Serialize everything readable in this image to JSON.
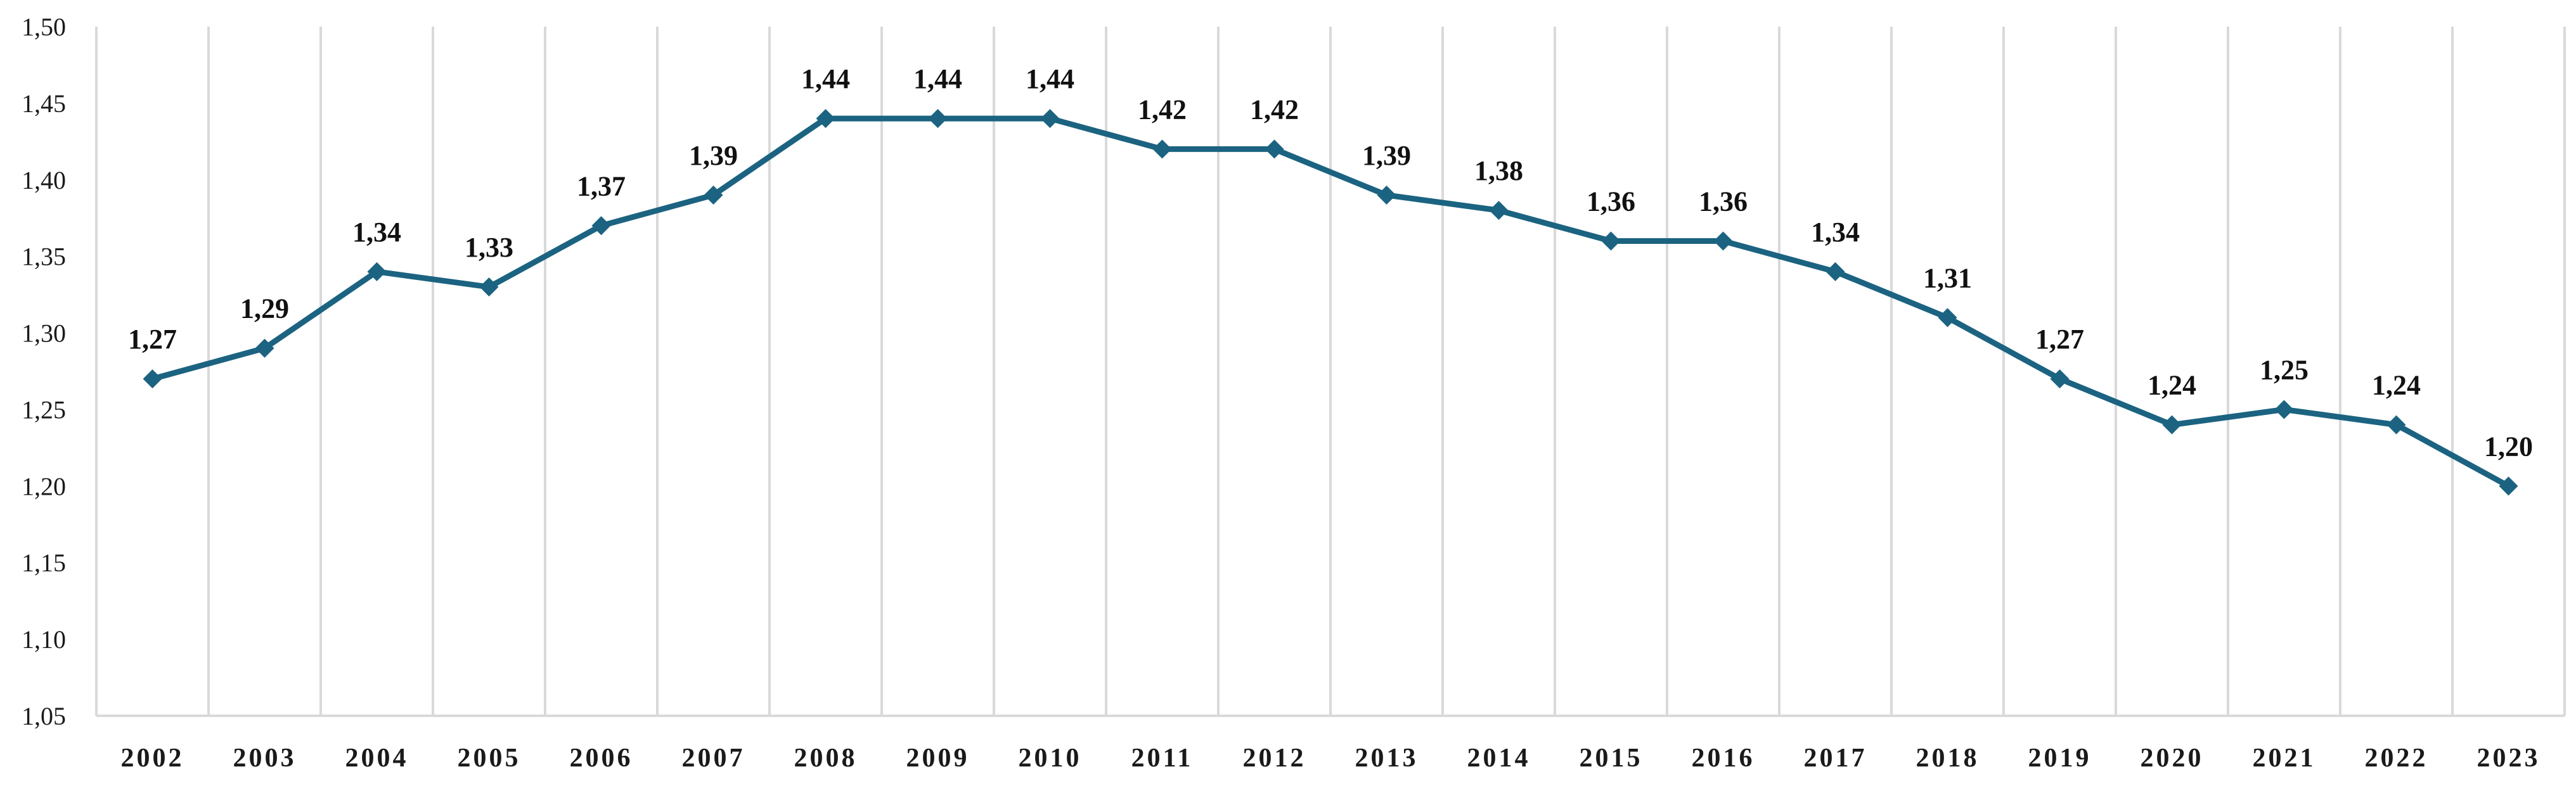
{
  "chart_data": {
    "type": "line",
    "title": "",
    "xlabel": "",
    "ylabel": "",
    "ylim": [
      1.05,
      1.5
    ],
    "yticks": [
      "1,05",
      "1,10",
      "1,15",
      "1,20",
      "1,25",
      "1,30",
      "1,35",
      "1,40",
      "1,45",
      "1,50"
    ],
    "categories": [
      "2002",
      "2003",
      "2004",
      "2005",
      "2006",
      "2007",
      "2008",
      "2009",
      "2010",
      "2011",
      "2012",
      "2013",
      "2014",
      "2015",
      "2016",
      "2017",
      "2018",
      "2019",
      "2020",
      "2021",
      "2022",
      "2023"
    ],
    "values": [
      1.27,
      1.29,
      1.34,
      1.33,
      1.37,
      1.39,
      1.44,
      1.44,
      1.44,
      1.42,
      1.42,
      1.39,
      1.38,
      1.36,
      1.36,
      1.34,
      1.31,
      1.27,
      1.24,
      1.25,
      1.24,
      1.2
    ],
    "data_labels": [
      "1,27",
      "1,29",
      "1,34",
      "1,33",
      "1,37",
      "1,39",
      "1,44",
      "1,44",
      "1,44",
      "1,42",
      "1,42",
      "1,39",
      "1,38",
      "1,36",
      "1,36",
      "1,34",
      "1,31",
      "1,27",
      "1,24",
      "1,25",
      "1,24",
      "1,20"
    ],
    "grid": "vertical",
    "series_color": "#1b6381",
    "marker": "diamond"
  }
}
